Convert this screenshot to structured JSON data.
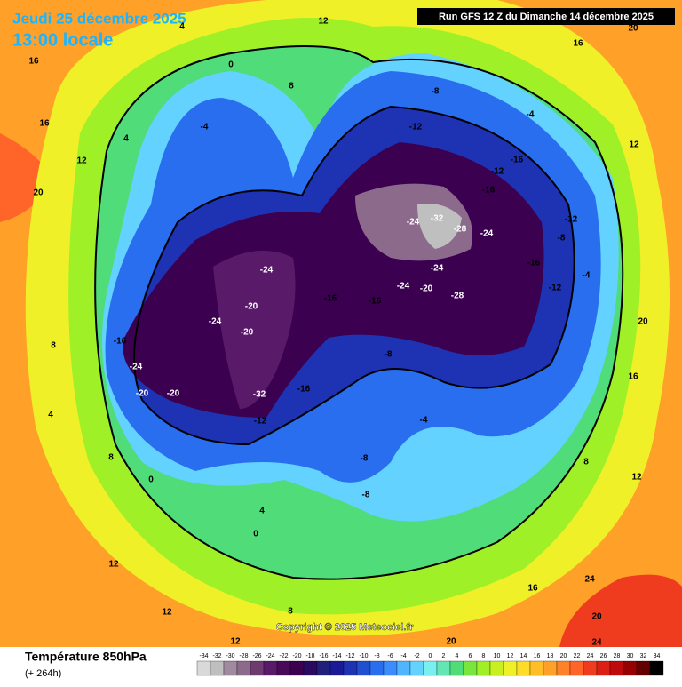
{
  "header": {
    "date": "Jeudi 25 décembre 2025",
    "time": "13:00 locale",
    "run": "Run GFS 12 Z du Dimanche 14 décembre 2025"
  },
  "map": {
    "contour_labels": [
      -24,
      -20,
      -24,
      -20,
      -16,
      -16,
      -24,
      -20,
      -28,
      -24,
      -24,
      -32,
      -28,
      -24,
      -12,
      -16,
      -12,
      -16,
      -12,
      -16,
      -12,
      -8,
      -4,
      -8,
      -4,
      0,
      -4,
      8,
      12,
      16,
      16,
      12,
      20,
      8,
      4,
      -16,
      -24,
      -20,
      -20,
      -32,
      -12,
      -16,
      -8,
      -4,
      -8,
      -8,
      4,
      0,
      8,
      12,
      12,
      16,
      24,
      20,
      24,
      12,
      16,
      20,
      12,
      16,
      20,
      20,
      12,
      0,
      8,
      4,
      4,
      8
    ]
  },
  "footer": {
    "copyright": "Copyright © 2025 Meteociel.fr",
    "title": "Température 850hPa",
    "lead": "(+ 264h)"
  },
  "legend": {
    "ticks": [
      -34,
      -32,
      -30,
      -28,
      -26,
      -24,
      -22,
      -20,
      -18,
      -16,
      -14,
      -12,
      -10,
      -8,
      -6,
      -4,
      -2,
      0,
      2,
      4,
      6,
      8,
      10,
      12,
      14,
      16,
      18,
      20,
      22,
      24,
      26,
      28,
      30,
      32,
      34
    ],
    "colors": [
      "#d9d9d9",
      "#bfbfbf",
      "#a08aa0",
      "#8c6a8c",
      "#6e3b6e",
      "#5a1a6a",
      "#4a0a5a",
      "#3c0050",
      "#2a0a60",
      "#20207a",
      "#1a1a96",
      "#1e32b4",
      "#2050d0",
      "#2a6ef0",
      "#3c8cff",
      "#50b4ff",
      "#64d2ff",
      "#78f0f0",
      "#64e6b4",
      "#50dc78",
      "#78e63c",
      "#a0f028",
      "#c8f020",
      "#f0f028",
      "#ffdc28",
      "#ffbe28",
      "#ffa028",
      "#ff8228",
      "#ff6428",
      "#f03c1e",
      "#dc1e14",
      "#be0a0a",
      "#960000",
      "#640000",
      "#000000"
    ]
  }
}
